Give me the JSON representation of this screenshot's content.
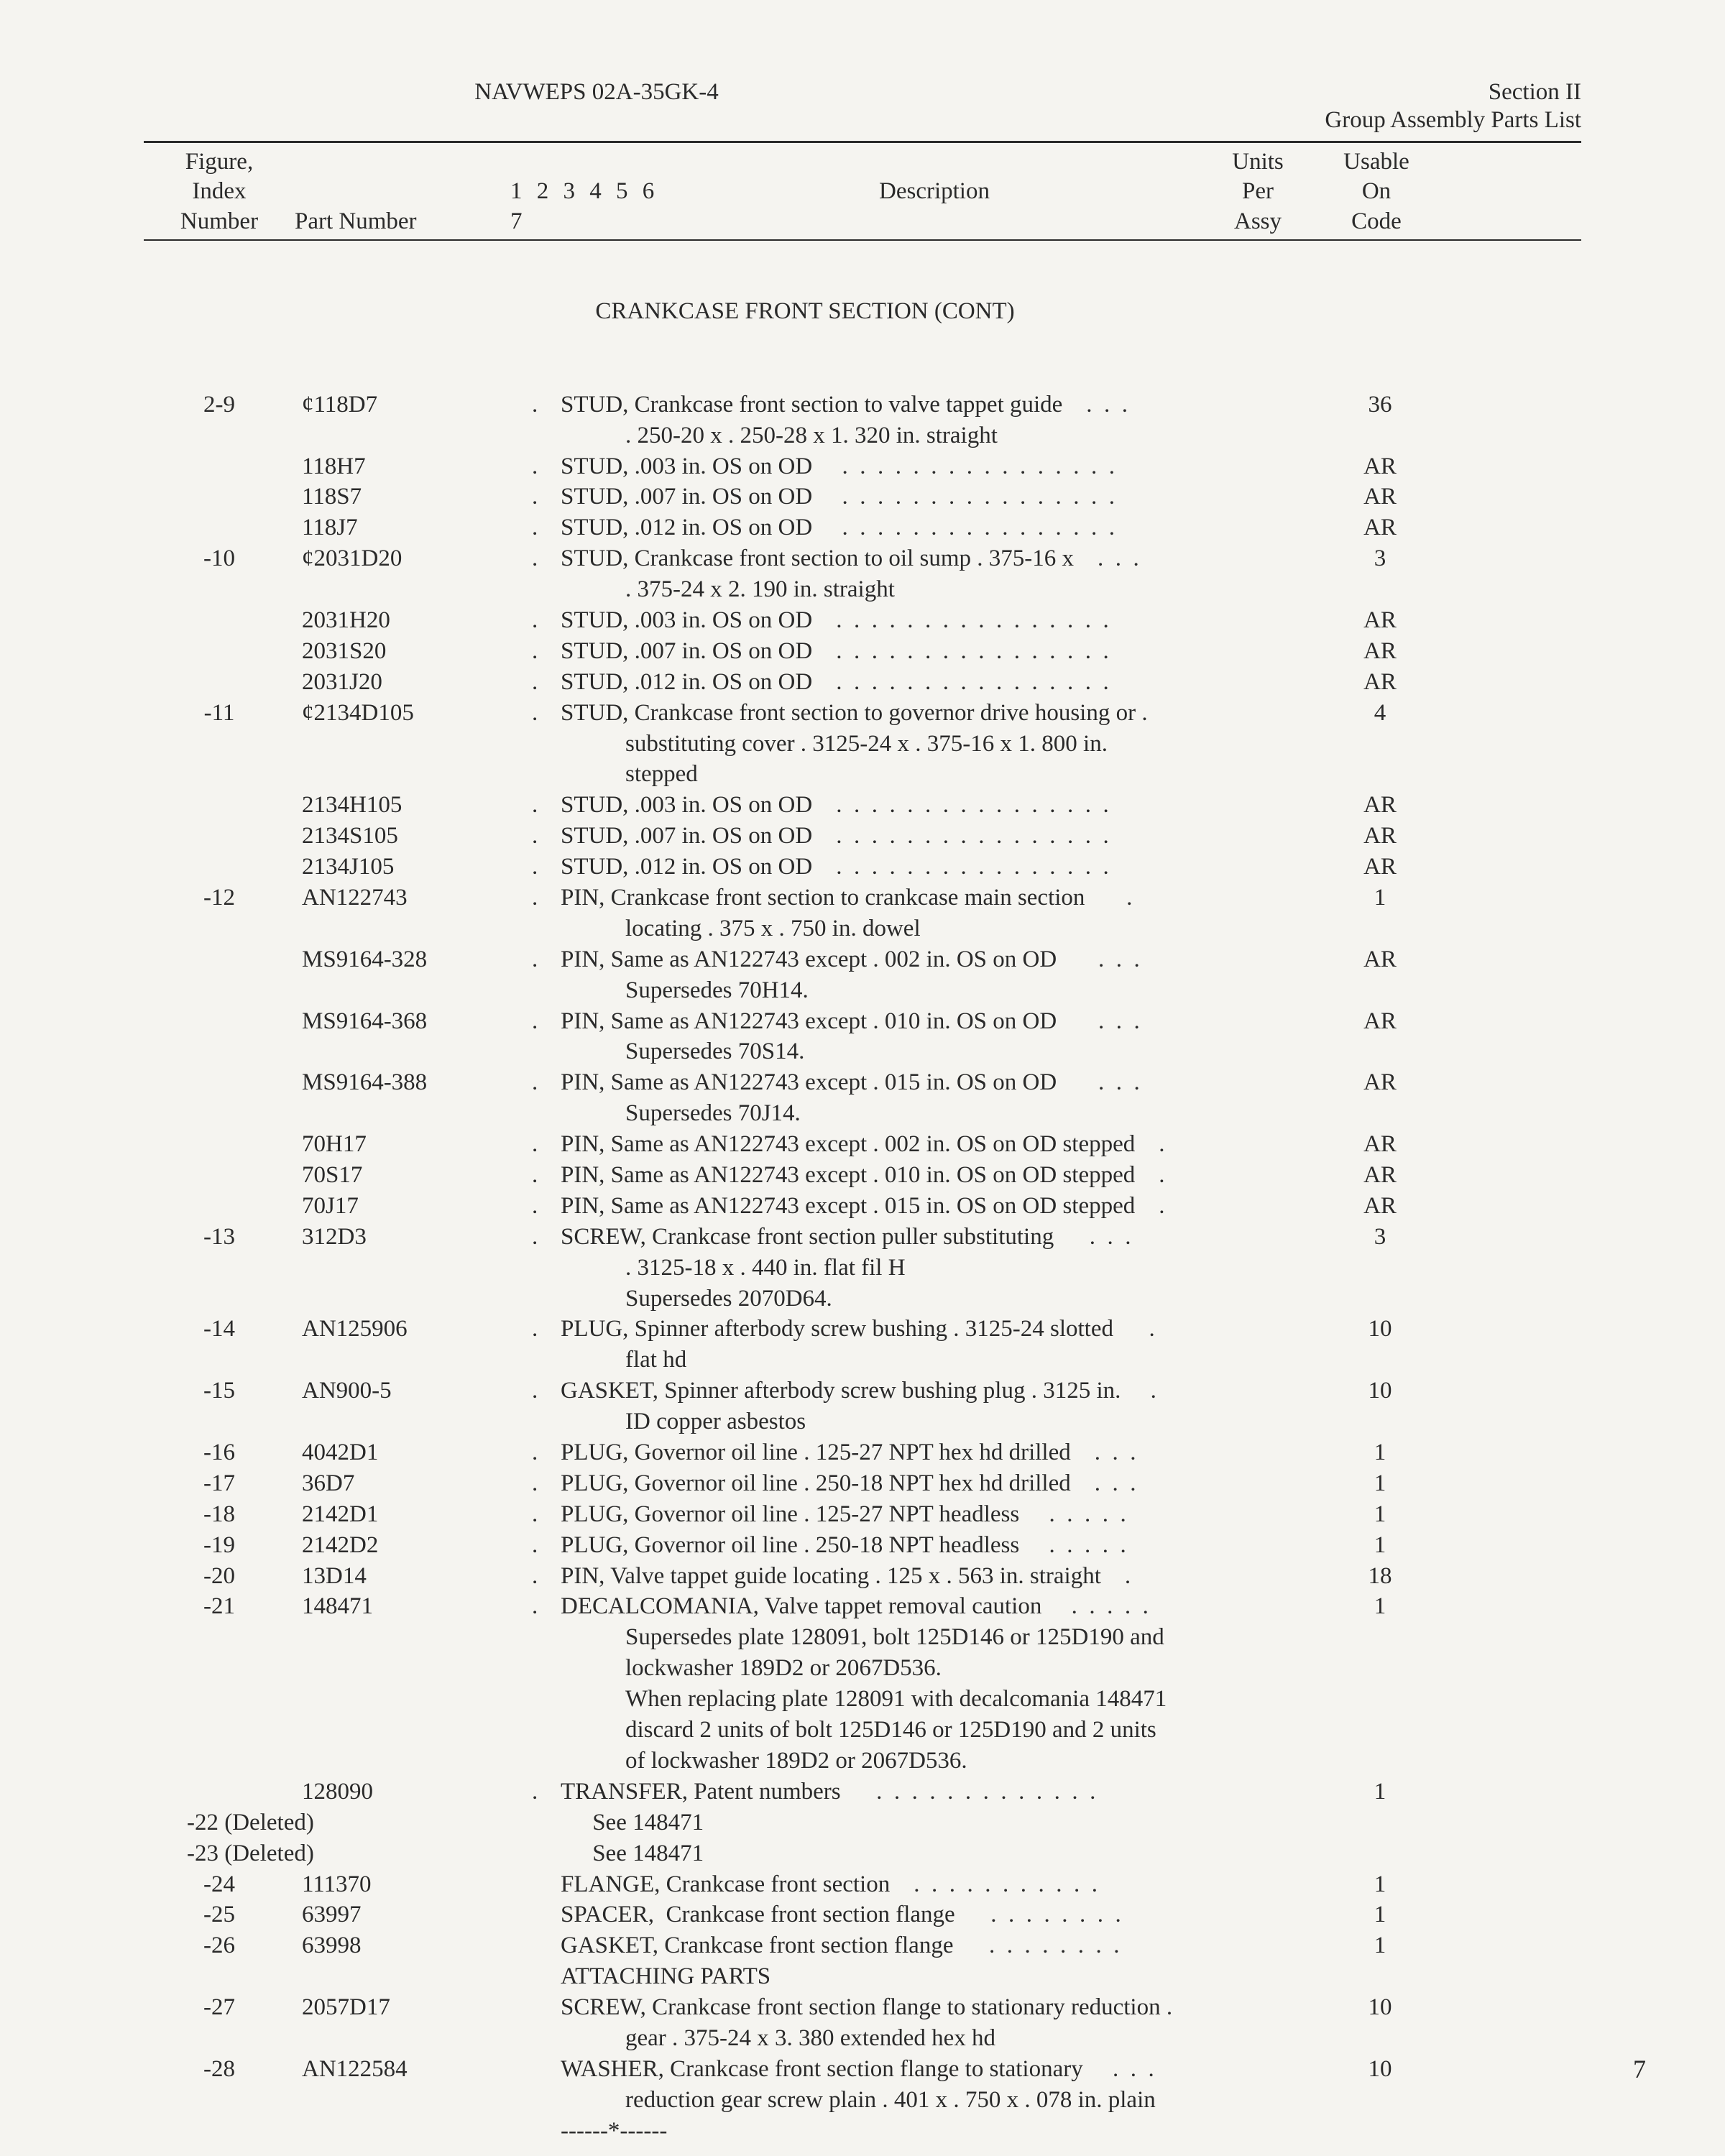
{
  "header": {
    "doc": "NAVWEPS 02A-35GK-4",
    "section": "Section II",
    "subtitle": "Group Assembly Parts List"
  },
  "columns": {
    "idx1": "Figure,",
    "idx2": "Index",
    "idx3": "Number",
    "pn": "Part Number",
    "levels": "1 2 3 4 5 6 7",
    "desc": "Description",
    "upa1": "Units",
    "upa2": "Per",
    "upa3": "Assy",
    "code1": "Usable",
    "code2": "On",
    "code3": "Code"
  },
  "section_title": "CRANKCASE FRONT SECTION (CONT)",
  "rows": [
    {
      "idx": "2-9",
      "pn": "¢118D7",
      "dot": ".",
      "desc": "STUD, Crankcase front section to valve tappet guide    .  .  .",
      "cont": ". 250-20 x . 250-28 x 1. 320 in. straight",
      "upa": "36"
    },
    {
      "idx": "",
      "pn": "118H7",
      "dot": ".",
      "desc": "STUD, .003 in. OS on OD     .  .  .  .  .  .  .  .  .  .  .  .  .  .  .  .",
      "upa": "AR"
    },
    {
      "idx": "",
      "pn": "118S7",
      "dot": ".",
      "desc": "STUD, .007 in. OS on OD     .  .  .  .  .  .  .  .  .  .  .  .  .  .  .  .",
      "upa": "AR"
    },
    {
      "idx": "",
      "pn": "118J7",
      "dot": ".",
      "desc": "STUD, .012 in. OS on OD     .  .  .  .  .  .  .  .  .  .  .  .  .  .  .  .",
      "upa": "AR"
    },
    {
      "idx": "-10",
      "pn": "¢2031D20",
      "dot": ".",
      "desc": "STUD, Crankcase front section to oil sump . 375-16 x    .  .  .",
      "cont": ". 375-24 x 2. 190 in. straight",
      "upa": "3"
    },
    {
      "idx": "",
      "pn": "2031H20",
      "dot": ".",
      "desc": "STUD, .003 in. OS on OD    .  .  .  .  .  .  .  .  .  .  .  .  .  .  .  .",
      "upa": "AR"
    },
    {
      "idx": "",
      "pn": "2031S20",
      "dot": ".",
      "desc": "STUD, .007 in. OS on OD    .  .  .  .  .  .  .  .  .  .  .  .  .  .  .  .",
      "upa": "AR"
    },
    {
      "idx": "",
      "pn": "2031J20",
      "dot": ".",
      "desc": "STUD, .012 in. OS on OD    .  .  .  .  .  .  .  .  .  .  .  .  .  .  .  .",
      "upa": "AR"
    },
    {
      "idx": "-11",
      "pn": "¢2134D105",
      "dot": ".",
      "desc": "STUD, Crankcase front section to governor drive housing or .",
      "cont": "substituting cover . 3125-24 x . 375-16 x 1. 800 in.\nstepped",
      "upa": "4"
    },
    {
      "idx": "",
      "pn": "2134H105",
      "dot": ".",
      "desc": "STUD, .003 in. OS on OD    .  .  .  .  .  .  .  .  .  .  .  .  .  .  .  .",
      "upa": "AR"
    },
    {
      "idx": "",
      "pn": "2134S105",
      "dot": ".",
      "desc": "STUD, .007 in. OS on OD    .  .  .  .  .  .  .  .  .  .  .  .  .  .  .  .",
      "upa": "AR"
    },
    {
      "idx": "",
      "pn": "2134J105",
      "dot": ".",
      "desc": "STUD, .012 in. OS on OD    .  .  .  .  .  .  .  .  .  .  .  .  .  .  .  .",
      "upa": "AR"
    },
    {
      "idx": "-12",
      "pn": "AN122743",
      "dot": ".",
      "desc": "PIN, Crankcase front section to crankcase main section       .",
      "cont": "locating . 375 x . 750 in. dowel",
      "upa": "1"
    },
    {
      "idx": "",
      "pn": "MS9164-328",
      "dot": ".",
      "desc": "PIN, Same as AN122743 except . 002 in. OS on OD       .  .  .",
      "cont": "Supersedes 70H14.",
      "upa": "AR"
    },
    {
      "idx": "",
      "pn": "MS9164-368",
      "dot": ".",
      "desc": "PIN, Same as AN122743 except . 010 in. OS on OD       .  .  .",
      "cont": "Supersedes 70S14.",
      "upa": "AR"
    },
    {
      "idx": "",
      "pn": "MS9164-388",
      "dot": ".",
      "desc": "PIN, Same as AN122743 except . 015 in. OS on OD       .  .  .",
      "cont": "Supersedes 70J14.",
      "upa": "AR"
    },
    {
      "idx": "",
      "pn": "70H17",
      "dot": ".",
      "desc": "PIN, Same as AN122743 except . 002 in. OS on OD stepped    .",
      "upa": "AR"
    },
    {
      "idx": "",
      "pn": "70S17",
      "dot": ".",
      "desc": "PIN, Same as AN122743 except . 010 in. OS on OD stepped    .",
      "upa": "AR"
    },
    {
      "idx": "",
      "pn": "70J17",
      "dot": ".",
      "desc": "PIN, Same as AN122743 except . 015 in. OS on OD stepped    .",
      "upa": "AR"
    },
    {
      "idx": "-13",
      "pn": "312D3",
      "dot": ".",
      "desc": "SCREW, Crankcase front section puller substituting      .  .  .",
      "cont": ". 3125-18 x . 440 in. flat fil H\nSupersedes 2070D64.",
      "upa": "3"
    },
    {
      "idx": "-14",
      "pn": "AN125906",
      "dot": ".",
      "desc": "PLUG, Spinner afterbody screw bushing . 3125-24 slotted      .",
      "cont": "flat hd",
      "upa": "10"
    },
    {
      "idx": "-15",
      "pn": "AN900-5",
      "dot": ".",
      "desc": "GASKET, Spinner afterbody screw bushing plug . 3125 in.     .",
      "cont": "ID copper asbestos",
      "upa": "10"
    },
    {
      "idx": "-16",
      "pn": "4042D1",
      "dot": ".",
      "desc": "PLUG, Governor oil line . 125-27 NPT hex hd drilled    .  .  .",
      "upa": "1"
    },
    {
      "idx": "-17",
      "pn": "36D7",
      "dot": ".",
      "desc": "PLUG, Governor oil line . 250-18 NPT hex hd drilled    .  .  .",
      "upa": "1"
    },
    {
      "idx": "-18",
      "pn": "2142D1",
      "dot": ".",
      "desc": "PLUG, Governor oil line . 125-27 NPT headless     .  .  .  .  .",
      "upa": "1"
    },
    {
      "idx": "-19",
      "pn": "2142D2",
      "dot": ".",
      "desc": "PLUG, Governor oil line . 250-18 NPT headless     .  .  .  .  .",
      "upa": "1"
    },
    {
      "idx": "-20",
      "pn": "13D14",
      "dot": ".",
      "desc": "PIN, Valve tappet guide locating . 125 x . 563 in. straight    .",
      "upa": "18"
    },
    {
      "idx": "-21",
      "pn": "148471",
      "dot": ".",
      "desc": "DECALCOMANIA, Valve tappet removal caution     .  .  .  .  .",
      "cont": "Supersedes plate 128091, bolt 125D146 or 125D190 and\nlockwasher 189D2 or 2067D536.\nWhen replacing plate 128091 with decalcomania 148471\ndiscard 2 units of bolt 125D146 or 125D190 and 2 units\nof lockwasher 189D2 or 2067D536.",
      "upa": "1"
    },
    {
      "idx": "",
      "pn": "128090",
      "dot": ".",
      "desc": "TRANSFER, Patent numbers      .  .  .  .  .  .  .  .  .  .  .  .  .",
      "upa": "1"
    },
    {
      "idx": "-22 (Deleted)",
      "pn": "",
      "dot": "",
      "desc": "See 148471",
      "upa": ""
    },
    {
      "idx": "-23 (Deleted)",
      "pn": "",
      "dot": "",
      "desc": "See 148471",
      "upa": ""
    },
    {
      "idx": "-24",
      "pn": "111370",
      "dot": "",
      "desc": "FLANGE, Crankcase front section    .  .  .  .  .  .  .  .  .  .  .",
      "upa": "1"
    },
    {
      "idx": "-25",
      "pn": "63997",
      "dot": "",
      "desc": "SPACER,  Crankcase front section flange      .  .  .  .  .  .  .  .",
      "upa": "1"
    },
    {
      "idx": "-26",
      "pn": "63998",
      "dot": "",
      "desc": "GASKET, Crankcase front section flange      .  .  .  .  .  .  .  .",
      "upa": "1"
    },
    {
      "idx": "",
      "pn": "",
      "dot": "",
      "desc": "",
      "upa": ""
    },
    {
      "idx": "",
      "pn": "",
      "dot": "",
      "desc": "ATTACHING PARTS",
      "upa": ""
    },
    {
      "idx": "-27",
      "pn": "2057D17",
      "dot": "",
      "desc": "SCREW, Crankcase front section flange to stationary reduction .",
      "cont": "gear . 375-24 x 3. 380 extended hex hd",
      "upa": "10"
    },
    {
      "idx": "-28",
      "pn": "AN122584",
      "dot": "",
      "desc": "WASHER, Crankcase front section flange to stationary     .  .  .",
      "cont": "reduction gear screw plain . 401 x . 750 x . 078 in. plain",
      "upa": "10"
    },
    {
      "idx": "",
      "pn": "",
      "dot": "",
      "desc": "------*------",
      "upa": ""
    }
  ],
  "page_number": "7"
}
